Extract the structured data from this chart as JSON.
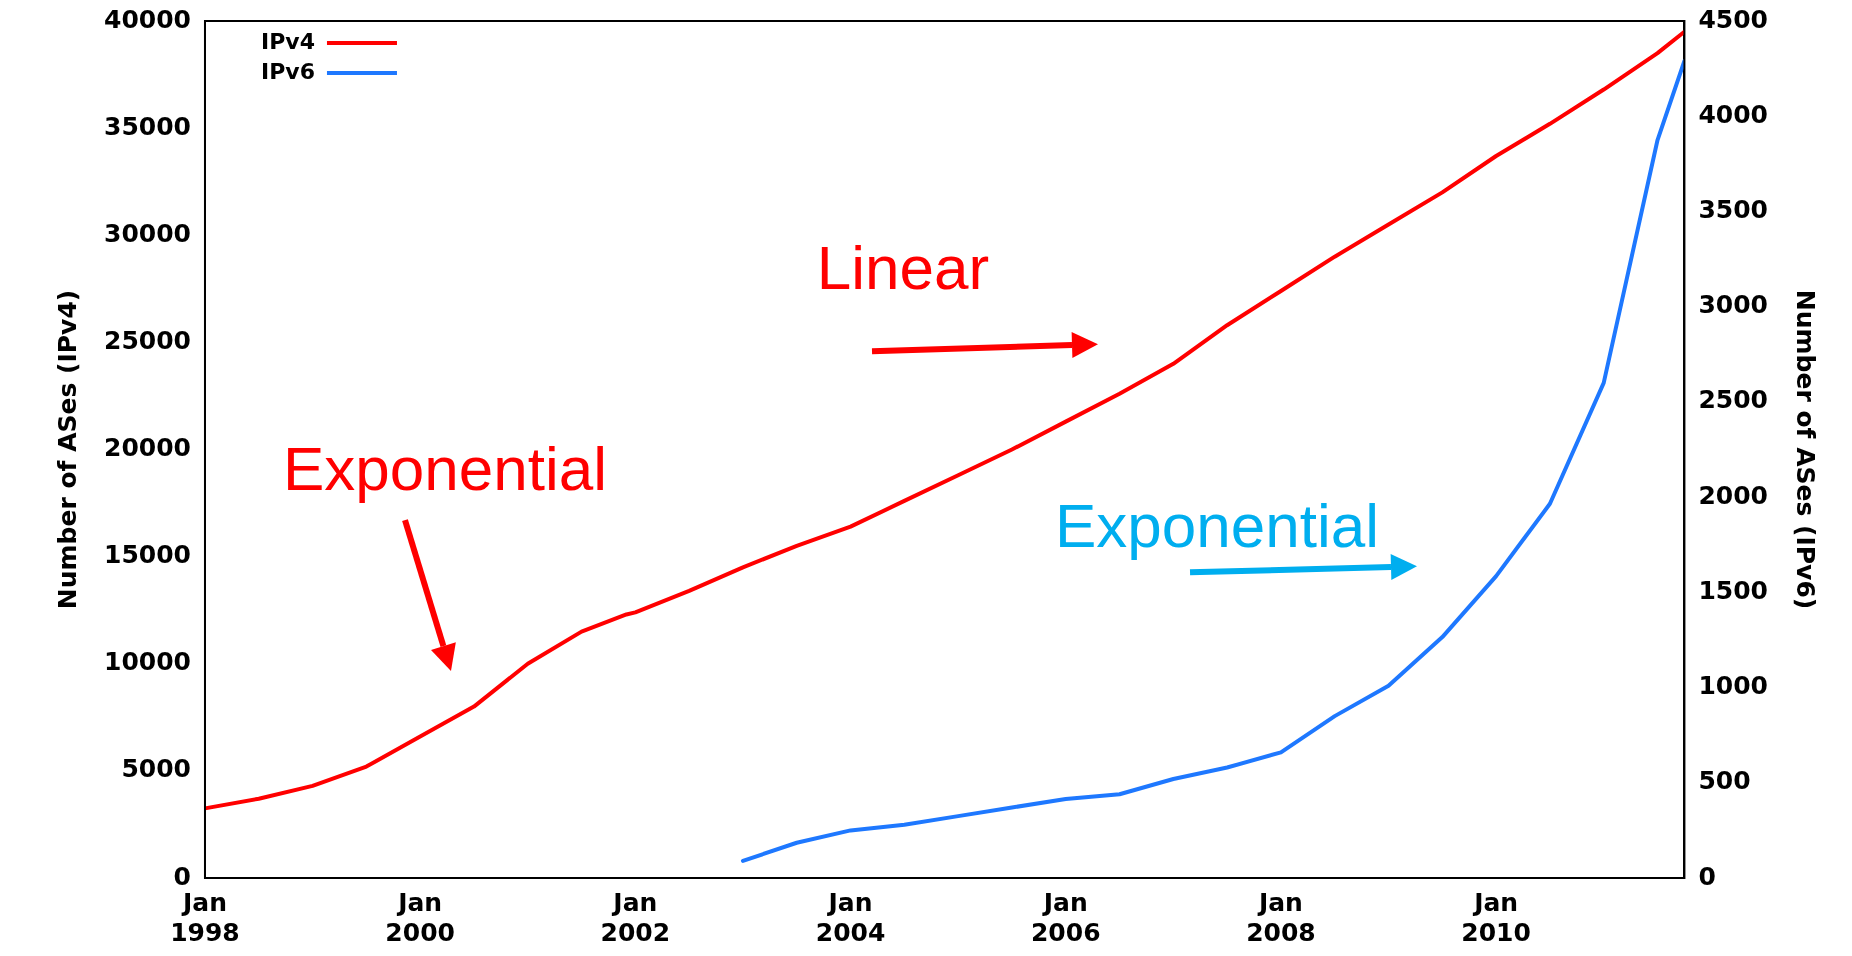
{
  "chart_data": {
    "type": "line",
    "ylabel": "Number of ASes (IPv4)",
    "y2label": "Number of ASes (IPv6)",
    "xlim": [
      "1998-01",
      "2011-10"
    ],
    "xticks": [
      {
        "value": "1998-01",
        "label": "Jan 1998"
      },
      {
        "value": "2000-01",
        "label": "Jan 2000"
      },
      {
        "value": "2002-01",
        "label": "Jan 2002"
      },
      {
        "value": "2004-01",
        "label": "Jan 2004"
      },
      {
        "value": "2006-01",
        "label": "Jan 2006"
      },
      {
        "value": "2008-01",
        "label": "Jan 2008"
      },
      {
        "value": "2010-01",
        "label": "Jan 2010"
      }
    ],
    "ylim": [
      0,
      40000
    ],
    "yticks": [
      0,
      5000,
      10000,
      15000,
      20000,
      25000,
      30000,
      35000,
      40000
    ],
    "y2lim": [
      0,
      4500
    ],
    "y2ticks": [
      0,
      500,
      1000,
      1500,
      2000,
      2500,
      3000,
      3500,
      4000,
      4500
    ],
    "grid": false,
    "legend": "top left",
    "marker": "none",
    "line_style": "solid",
    "series": [
      {
        "name": "IPv4",
        "color": "#ff0000",
        "x": [
          "1998-01",
          "1998-07",
          "1999-01",
          "1999-07",
          "2000-01",
          "2000-07",
          "2001-01",
          "2001-07",
          "2001-12",
          "2002-01",
          "2002-07",
          "2003-01",
          "2003-07",
          "2004-01",
          "2004-07",
          "2005-01",
          "2005-07",
          "2006-01",
          "2006-07",
          "2007-01",
          "2007-07",
          "2008-01",
          "2008-07",
          "2009-01",
          "2009-07",
          "2010-01",
          "2010-07",
          "2011-01",
          "2011-07",
          "2011-10"
        ],
        "values": [
          3250,
          3700,
          4300,
          5200,
          6600,
          8000,
          10000,
          11500,
          12300,
          12400,
          13400,
          14500,
          15500,
          16400,
          17600,
          18800,
          20000,
          21300,
          22600,
          24000,
          25800,
          27400,
          29000,
          30500,
          32000,
          33700,
          35200,
          36800,
          38500,
          39500
        ]
      },
      {
        "name": "IPv6",
        "color": "#1e78ff",
        "axis": "y2",
        "x": [
          "2003-01",
          "2003-07",
          "2004-01",
          "2004-07",
          "2005-01",
          "2005-07",
          "2006-01",
          "2006-07",
          "2007-01",
          "2007-07",
          "2008-01",
          "2008-07",
          "2009-01",
          "2009-07",
          "2010-01",
          "2010-07",
          "2011-01",
          "2011-07",
          "2011-10"
        ],
        "values": [
          90,
          185,
          250,
          280,
          325,
          370,
          415,
          440,
          520,
          580,
          660,
          850,
          1010,
          1265,
          1585,
          1965,
          2600,
          3875,
          4290
        ]
      }
    ],
    "annotations": [
      "Linear",
      "Exponential",
      "Exponential"
    ]
  }
}
